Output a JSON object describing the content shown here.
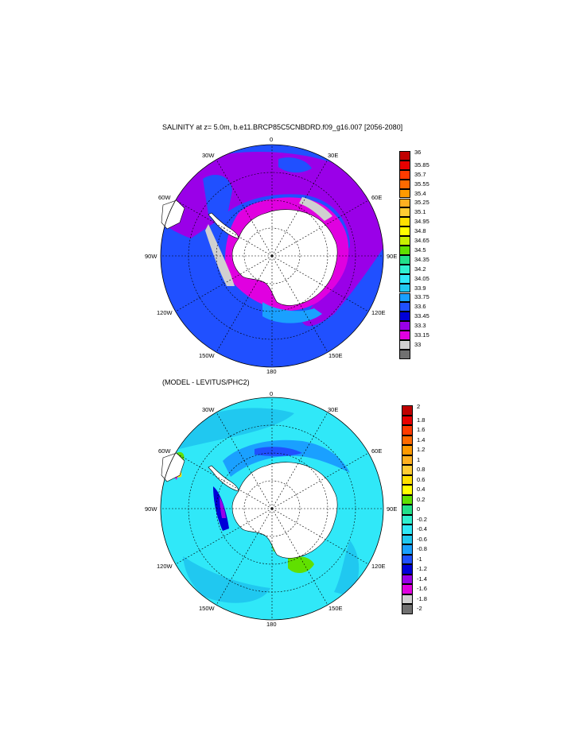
{
  "panel1": {
    "title": "SALINITY at z=   5.0m, b.e11.BRCP85C5CNBDRD.f09_g16.007 [2056-2080]",
    "lon_labels": {
      "n0": "0",
      "n30e": "30E",
      "n60e": "60E",
      "n90e": "90E",
      "n120e": "120E",
      "n150e": "150E",
      "n180": "180",
      "n150w": "150W",
      "n120w": "120W",
      "n90w": "90W",
      "n60w": "60W",
      "n30w": "30W"
    },
    "colorbar": {
      "labels": [
        "36",
        "35.85",
        "35.7",
        "35.55",
        "35.4",
        "35.25",
        "35.1",
        "34.95",
        "34.8",
        "34.65",
        "34.5",
        "34.35",
        "34.2",
        "34.05",
        "33.9",
        "33.75",
        "33.6",
        "33.45",
        "33.3",
        "33.15",
        "33"
      ],
      "colors": [
        "#c00000",
        "#e80000",
        "#ff3b00",
        "#ff6a00",
        "#ff9a00",
        "#ffb020",
        "#ffcc33",
        "#ffe000",
        "#ffff00",
        "#c8f000",
        "#60e000",
        "#22e08a",
        "#30f0d0",
        "#30e8f8",
        "#20c8f0",
        "#1aa0ff",
        "#2050ff",
        "#0000d8",
        "#9a00e8",
        "#e000e0",
        "#d0d0d0",
        "#707070"
      ]
    }
  },
  "panel2": {
    "title": "(MODEL - LEVITUS/PHC2)",
    "lon_labels": {
      "n0": "0",
      "n30e": "30E",
      "n60e": "60E",
      "n90e": "90E",
      "n120e": "120E",
      "n150e": "150E",
      "n180": "180",
      "n150w": "150W",
      "n120w": "120W",
      "n90w": "90W",
      "n60w": "60W",
      "n30w": "30W"
    },
    "colorbar": {
      "labels": [
        "2",
        "1.8",
        "1.6",
        "1.4",
        "1.2",
        "1",
        "0.8",
        "0.6",
        "0.4",
        "0.2",
        "0",
        "-0.2",
        "-0.4",
        "-0.6",
        "-0.8",
        "-1",
        "-1.2",
        "-1.4",
        "-1.6",
        "-1.8",
        "-2"
      ],
      "colors": [
        "#c00000",
        "#e80000",
        "#ff3b00",
        "#ff6a00",
        "#ff9a00",
        "#ffb020",
        "#ffcc33",
        "#ffe000",
        "#ffff00",
        "#60e000",
        "#22e08a",
        "#30f0d0",
        "#30e8f8",
        "#20c8f0",
        "#1aa0ff",
        "#2050ff",
        "#0000d8",
        "#9a00e8",
        "#e000e0",
        "#d0d0d0",
        "#707070"
      ]
    }
  }
}
